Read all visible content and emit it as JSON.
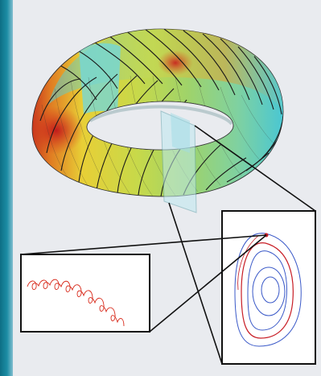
{
  "colors": {
    "background": "#e9ebef",
    "accent_bar": "#1a859d",
    "torus_hot": "#d82a1b",
    "torus_warm": "#e8d437",
    "torus_cool": "#42c9d6",
    "field_line": "#111111",
    "ripple": "#d82a1b",
    "flux_blue": "#3a59c8",
    "flux_red": "#c81d25"
  },
  "figure": {
    "description_tags": [
      "torus-icon",
      "magnetic-field-lines",
      "poloidal-cross-section",
      "zoom-inset"
    ]
  }
}
